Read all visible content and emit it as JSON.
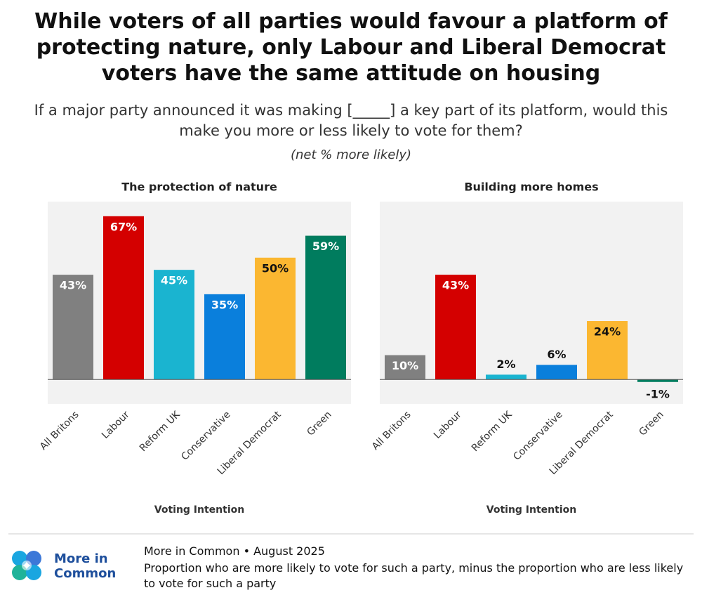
{
  "header": {
    "title": "While voters of all parties would favour a platform of protecting nature, only Labour and Liberal Democrat voters have the same attitude on housing",
    "subtitle": "If a major party announced it was making [_____] a key part of its platform, would this make you more or less likely to vote for them?",
    "note": "(net % more likely)"
  },
  "chart_data": [
    {
      "type": "bar",
      "title": "The protection of nature",
      "x_label": "Voting Intention",
      "categories": [
        "All Britons",
        "Labour",
        "Reform UK",
        "Conservative",
        "Liberal Democrat",
        "Green"
      ],
      "values": [
        43,
        67,
        45,
        35,
        50,
        59
      ],
      "value_labels": [
        "43%",
        "67%",
        "45%",
        "35%",
        "50%",
        "59%"
      ],
      "colors": [
        "#808080",
        "#d40000",
        "#1ab4d0",
        "#0a7fdc",
        "#fbb731",
        "#007c5e"
      ],
      "ylim": [
        -10,
        73
      ]
    },
    {
      "type": "bar",
      "title": "Building more homes",
      "x_label": "Voting Intention",
      "categories": [
        "All Britons",
        "Labour",
        "Reform UK",
        "Conservative",
        "Liberal Democrat",
        "Green"
      ],
      "values": [
        10,
        43,
        2,
        6,
        24,
        -1
      ],
      "value_labels": [
        "10%",
        "43%",
        "2%",
        "6%",
        "24%",
        "-1%"
      ],
      "colors": [
        "#808080",
        "#d40000",
        "#1ab4d0",
        "#0a7fdc",
        "#fbb731",
        "#007c5e"
      ],
      "ylim": [
        -10,
        73
      ]
    }
  ],
  "footer": {
    "logo": "More in Common",
    "source": "More in Common • August 2025",
    "note": "Proportion who are more likely to vote for such a party, minus the proportion who are less likely to vote for such a party"
  }
}
